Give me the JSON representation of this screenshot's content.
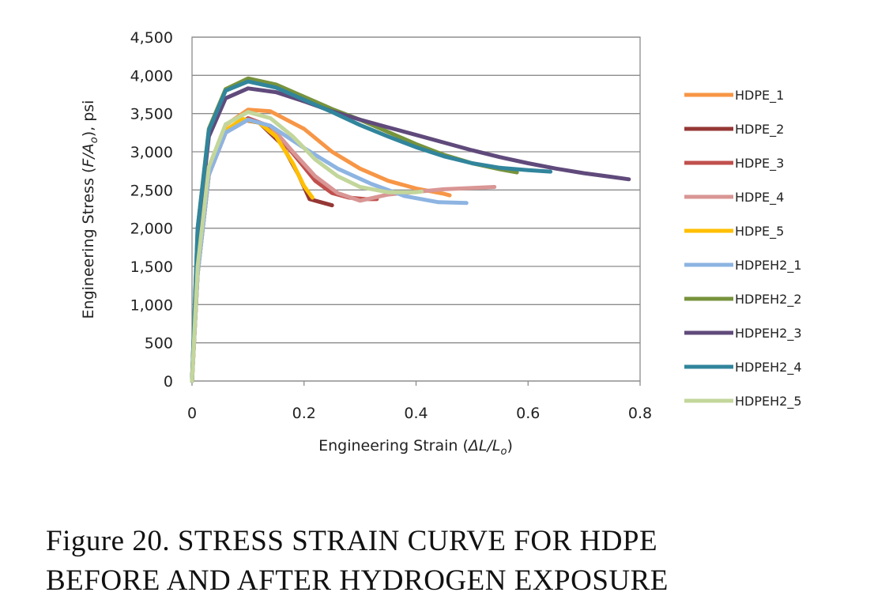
{
  "caption": {
    "line1": "Figure 20.  STRESS  STRAIN  CURVE  FOR  HDPE",
    "line2": "BEFORE AND AFTER HYDROGEN EXPOSURE"
  },
  "chart_data": {
    "type": "line",
    "title": "",
    "xlabel_main": "Engineering Strain (",
    "xlabel_delta": "ΔL/L",
    "xlabel_sub": "o",
    "xlabel_close": ")",
    "ylabel_main": "Engineering Stress (",
    "ylabel_var": "F/A",
    "ylabel_sub": "o",
    "ylabel_close": "), psi",
    "xlim": [
      0,
      0.8
    ],
    "ylim": [
      0,
      4500
    ],
    "x_ticks": [
      0,
      0.2,
      0.4,
      0.6,
      0.8
    ],
    "x_tick_labels": [
      "0",
      "0.2",
      "0.4",
      "0.6",
      "0.8"
    ],
    "y_ticks": [
      0,
      500,
      1000,
      1500,
      2000,
      2500,
      3000,
      3500,
      4000,
      4500
    ],
    "y_tick_labels": [
      "0",
      "500",
      "1,000",
      "1,500",
      "2,000",
      "2,500",
      "3,000",
      "3,500",
      "4,000",
      "4,500"
    ],
    "grid": true,
    "legend_position": "right",
    "series": [
      {
        "name": "HDPE_1",
        "color": "#f79646",
        "points": [
          [
            0,
            0
          ],
          [
            0.01,
            1500
          ],
          [
            0.03,
            2800
          ],
          [
            0.06,
            3350
          ],
          [
            0.1,
            3550
          ],
          [
            0.14,
            3530
          ],
          [
            0.2,
            3300
          ],
          [
            0.25,
            3000
          ],
          [
            0.3,
            2780
          ],
          [
            0.35,
            2620
          ],
          [
            0.4,
            2520
          ],
          [
            0.45,
            2450
          ],
          [
            0.46,
            2430
          ]
        ]
      },
      {
        "name": "HDPE_2",
        "color": "#953735",
        "points": [
          [
            0,
            0
          ],
          [
            0.01,
            1400
          ],
          [
            0.03,
            2700
          ],
          [
            0.06,
            3250
          ],
          [
            0.09,
            3420
          ],
          [
            0.12,
            3380
          ],
          [
            0.16,
            3100
          ],
          [
            0.19,
            2700
          ],
          [
            0.21,
            2380
          ],
          [
            0.23,
            2340
          ],
          [
            0.25,
            2300
          ]
        ]
      },
      {
        "name": "HDPE_3",
        "color": "#c0504d",
        "points": [
          [
            0,
            0
          ],
          [
            0.01,
            1400
          ],
          [
            0.03,
            2700
          ],
          [
            0.06,
            3250
          ],
          [
            0.1,
            3440
          ],
          [
            0.14,
            3330
          ],
          [
            0.18,
            2980
          ],
          [
            0.22,
            2620
          ],
          [
            0.25,
            2460
          ],
          [
            0.28,
            2400
          ],
          [
            0.31,
            2380
          ],
          [
            0.33,
            2380
          ]
        ]
      },
      {
        "name": "HDPE_4",
        "color": "#d99694",
        "points": [
          [
            0,
            0
          ],
          [
            0.01,
            1400
          ],
          [
            0.03,
            2700
          ],
          [
            0.06,
            3250
          ],
          [
            0.1,
            3420
          ],
          [
            0.14,
            3340
          ],
          [
            0.18,
            3000
          ],
          [
            0.22,
            2680
          ],
          [
            0.26,
            2460
          ],
          [
            0.3,
            2360
          ],
          [
            0.35,
            2440
          ],
          [
            0.45,
            2510
          ],
          [
            0.54,
            2540
          ]
        ]
      },
      {
        "name": "HDPE_5",
        "color": "#ffc000",
        "points": [
          [
            0,
            0
          ],
          [
            0.01,
            1400
          ],
          [
            0.03,
            2750
          ],
          [
            0.06,
            3280
          ],
          [
            0.09,
            3430
          ],
          [
            0.12,
            3380
          ],
          [
            0.15,
            3200
          ],
          [
            0.18,
            2850
          ],
          [
            0.2,
            2550
          ],
          [
            0.215,
            2400
          ]
        ]
      },
      {
        "name": "HDPEH2_1",
        "color": "#8db4e2",
        "points": [
          [
            0,
            0
          ],
          [
            0.01,
            1400
          ],
          [
            0.03,
            2700
          ],
          [
            0.06,
            3250
          ],
          [
            0.1,
            3420
          ],
          [
            0.14,
            3340
          ],
          [
            0.2,
            3050
          ],
          [
            0.26,
            2780
          ],
          [
            0.32,
            2580
          ],
          [
            0.38,
            2420
          ],
          [
            0.44,
            2340
          ],
          [
            0.49,
            2330
          ]
        ]
      },
      {
        "name": "HDPEH2_2",
        "color": "#77933c",
        "points": [
          [
            0,
            0
          ],
          [
            0.01,
            2000
          ],
          [
            0.03,
            3300
          ],
          [
            0.06,
            3820
          ],
          [
            0.1,
            3960
          ],
          [
            0.15,
            3880
          ],
          [
            0.2,
            3720
          ],
          [
            0.25,
            3560
          ],
          [
            0.3,
            3420
          ],
          [
            0.35,
            3260
          ],
          [
            0.4,
            3100
          ],
          [
            0.45,
            2960
          ],
          [
            0.5,
            2850
          ],
          [
            0.55,
            2770
          ],
          [
            0.58,
            2730
          ]
        ]
      },
      {
        "name": "HDPEH2_3",
        "color": "#604a7b",
        "points": [
          [
            0,
            0
          ],
          [
            0.01,
            1900
          ],
          [
            0.03,
            3200
          ],
          [
            0.06,
            3700
          ],
          [
            0.1,
            3830
          ],
          [
            0.15,
            3780
          ],
          [
            0.2,
            3660
          ],
          [
            0.25,
            3530
          ],
          [
            0.3,
            3420
          ],
          [
            0.35,
            3320
          ],
          [
            0.4,
            3220
          ],
          [
            0.45,
            3120
          ],
          [
            0.5,
            3020
          ],
          [
            0.55,
            2930
          ],
          [
            0.6,
            2850
          ],
          [
            0.65,
            2780
          ],
          [
            0.7,
            2720
          ],
          [
            0.75,
            2670
          ],
          [
            0.78,
            2640
          ]
        ]
      },
      {
        "name": "HDPEH2_4",
        "color": "#31859c",
        "points": [
          [
            0,
            0
          ],
          [
            0.01,
            2000
          ],
          [
            0.03,
            3280
          ],
          [
            0.06,
            3800
          ],
          [
            0.1,
            3920
          ],
          [
            0.15,
            3840
          ],
          [
            0.2,
            3680
          ],
          [
            0.25,
            3520
          ],
          [
            0.3,
            3350
          ],
          [
            0.35,
            3200
          ],
          [
            0.4,
            3060
          ],
          [
            0.45,
            2940
          ],
          [
            0.5,
            2850
          ],
          [
            0.55,
            2790
          ],
          [
            0.6,
            2760
          ],
          [
            0.64,
            2740
          ]
        ]
      },
      {
        "name": "HDPEH2_5",
        "color": "#c3d69b",
        "points": [
          [
            0,
            0
          ],
          [
            0.01,
            1500
          ],
          [
            0.03,
            2800
          ],
          [
            0.06,
            3360
          ],
          [
            0.1,
            3520
          ],
          [
            0.14,
            3440
          ],
          [
            0.18,
            3200
          ],
          [
            0.22,
            2900
          ],
          [
            0.26,
            2680
          ],
          [
            0.3,
            2540
          ],
          [
            0.35,
            2470
          ],
          [
            0.4,
            2470
          ],
          [
            0.41,
            2480
          ]
        ]
      }
    ]
  }
}
